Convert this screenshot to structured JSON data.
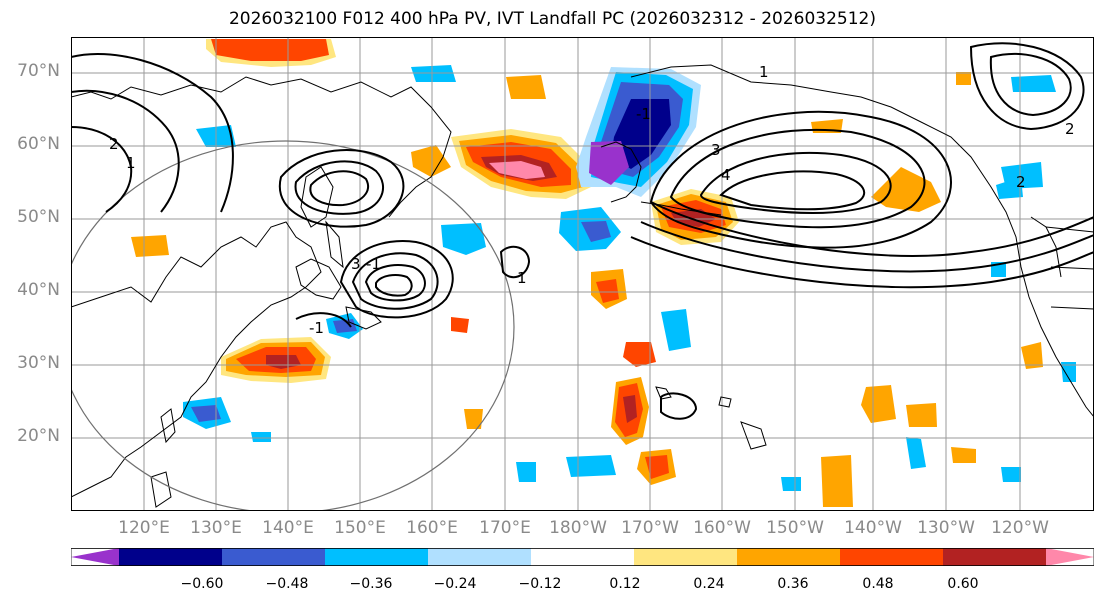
{
  "title": "2026032100 F012 400 hPa PV, IVT Landfall PC (2026032312 - 2026032512)",
  "lat_labels": [
    "70°N",
    "60°N",
    "50°N",
    "40°N",
    "30°N",
    "20°N"
  ],
  "lon_labels": [
    "120°E",
    "130°E",
    "140°E",
    "150°E",
    "160°E",
    "170°E",
    "180°W",
    "170°W",
    "160°W",
    "150°W",
    "140°W",
    "130°W",
    "120°W"
  ],
  "contour_labels": [
    "1",
    "2",
    "1",
    "-1",
    "3",
    "-1",
    "1",
    "3",
    "4",
    "2",
    "-1",
    "1",
    "1",
    "2"
  ],
  "colorbar": {
    "tick_labels": [
      "−0.60",
      "−0.48",
      "−0.36",
      "−0.24",
      "−0.12",
      "0.12",
      "0.24",
      "0.36",
      "0.48",
      "0.60"
    ],
    "colors": [
      "#9932cc",
      "#00008b",
      "#3a5bd0",
      "#00bfff",
      "#b0e0ff",
      "#ffffff",
      "#ffe680",
      "#ffa500",
      "#ff4500",
      "#b22222",
      "#ff88aa"
    ]
  },
  "fill_colors": {
    "neg_1": "#b0e0ff",
    "neg_2": "#00bfff",
    "neg_3": "#3a5bd0",
    "neg_4": "#00008b",
    "neg_5": "#9932cc",
    "pos_1": "#ffe680",
    "pos_2": "#ffa500",
    "pos_3": "#ff4500",
    "pos_4": "#b22222",
    "pos_5": "#ff88aa"
  }
}
